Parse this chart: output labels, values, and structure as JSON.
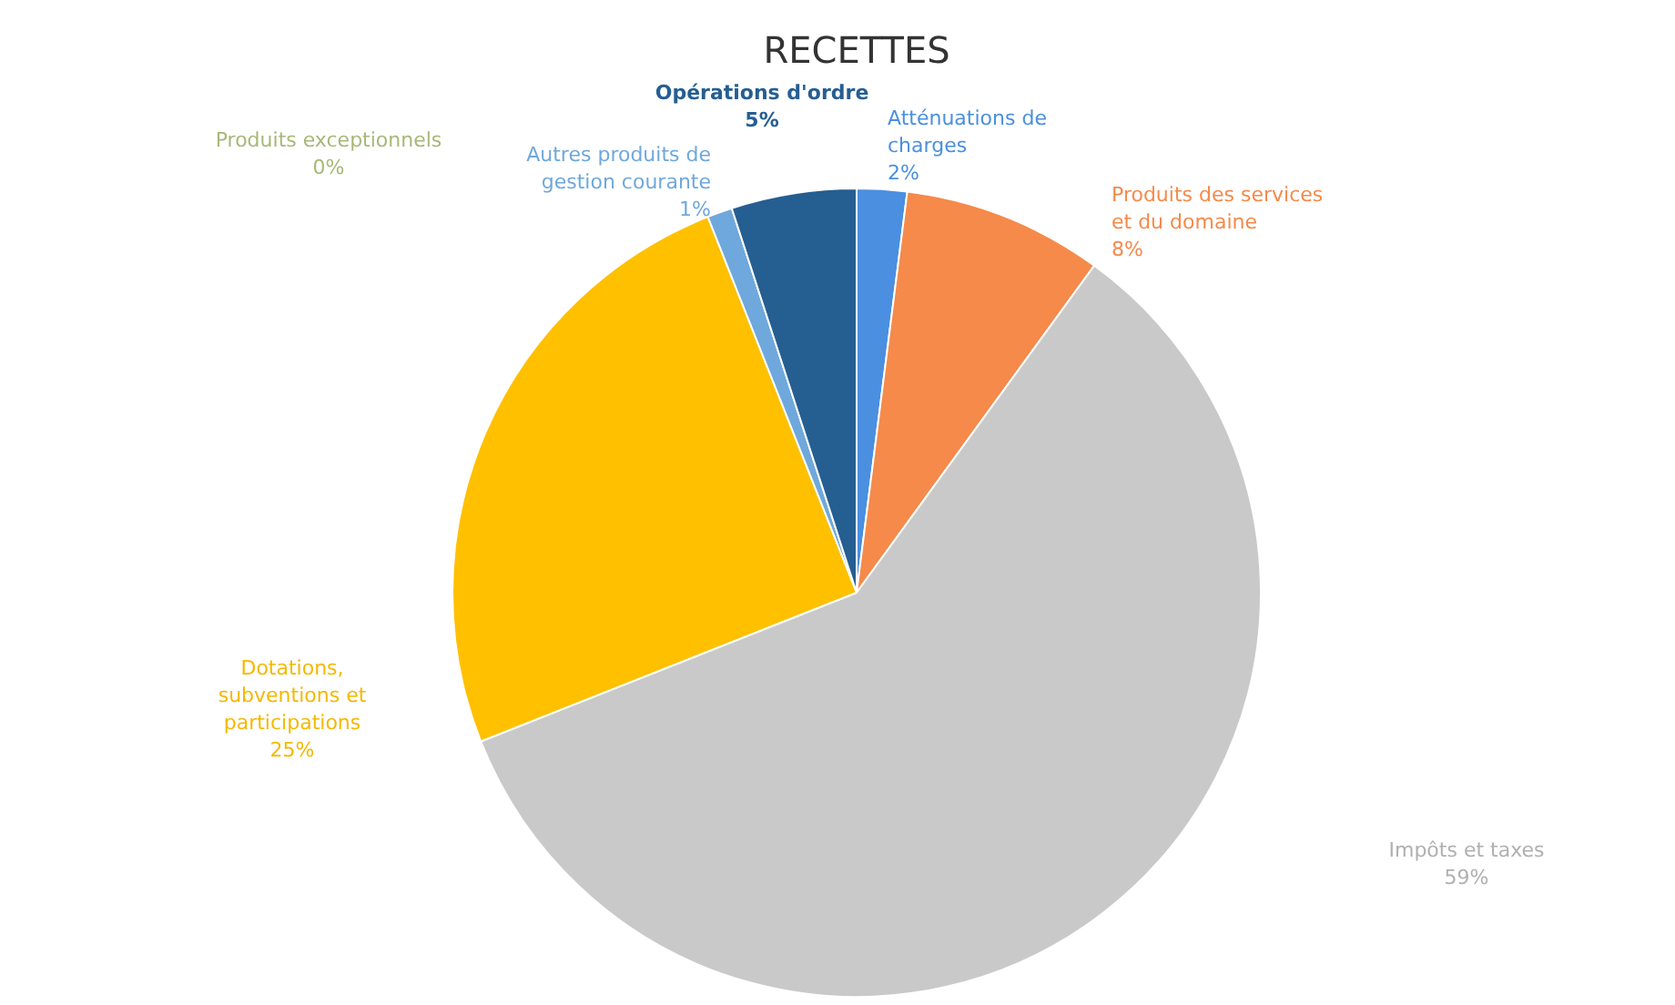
{
  "chart_data": {
    "type": "pie",
    "title": "RECETTES",
    "categories": [
      "Atténuations de charges",
      "Produits des services et du domaine",
      "Impôts et taxes",
      "Dotations, subventions et participations",
      "Produits exceptionnels",
      "Autres produits de gestion courante",
      "Opérations d'ordre"
    ],
    "values": [
      2,
      8,
      59,
      25,
      0,
      1,
      5
    ],
    "value_labels": [
      "2%",
      "8%",
      "59%",
      "25%",
      "0%",
      "1%",
      "5%"
    ],
    "colors": [
      "#4a8fe0",
      "#f58a4b",
      "#c9c9c9",
      "#ffc000",
      "#8fbf50",
      "#6fa8dc",
      "#255e91"
    ]
  }
}
